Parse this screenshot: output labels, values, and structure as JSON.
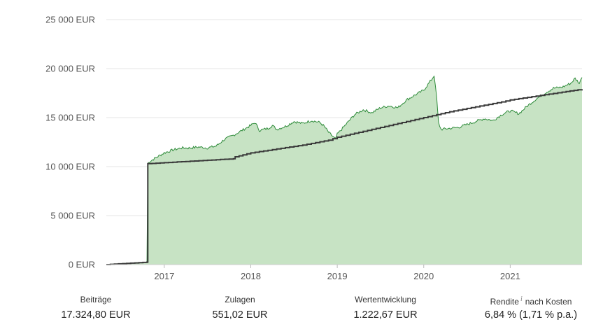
{
  "chart_data": {
    "type": "area",
    "ylim": [
      0,
      25000
    ],
    "y_ticks": [
      0,
      5000,
      10000,
      15000,
      20000,
      25000
    ],
    "y_tick_labels": [
      "0 EUR",
      "5 000 EUR",
      "10 000 EUR",
      "15 000 EUR",
      "20 000 EUR",
      "25 000 EUR"
    ],
    "x_range": [
      2016.33,
      2021.83
    ],
    "x_ticks": [
      2017,
      2018,
      2019,
      2020,
      2021
    ],
    "x_tick_labels": [
      "2017",
      "2018",
      "2019",
      "2020",
      "2021"
    ],
    "grid": "horizontal",
    "colors": {
      "area_fill": "#c7e3c4",
      "area_line": "#2e8b3a",
      "contrib_line": "#3a3a3a",
      "grid": "#e6e6e6"
    },
    "series": [
      {
        "role": "depot value (green area)",
        "x": [
          2016.33,
          2016.5,
          2016.78,
          2016.8,
          2016.81,
          2016.83,
          2016.9,
          2017.0,
          2017.1,
          2017.2,
          2017.3,
          2017.4,
          2017.5,
          2017.6,
          2017.7,
          2017.8,
          2017.9,
          2018.0,
          2018.05,
          2018.1,
          2018.2,
          2018.25,
          2018.3,
          2018.4,
          2018.5,
          2018.6,
          2018.7,
          2018.8,
          2018.85,
          2018.9,
          2018.98,
          2019.0,
          2019.1,
          2019.2,
          2019.3,
          2019.4,
          2019.5,
          2019.6,
          2019.7,
          2019.8,
          2019.9,
          2020.0,
          2020.1,
          2020.12,
          2020.15,
          2020.17,
          2020.2,
          2020.3,
          2020.4,
          2020.5,
          2020.6,
          2020.7,
          2020.8,
          2020.9,
          2021.0,
          2021.1,
          2021.2,
          2021.3,
          2021.4,
          2021.5,
          2021.6,
          2021.7,
          2021.75,
          2021.8,
          2021.83
        ],
        "values": [
          0,
          100,
          250,
          250,
          10300,
          10500,
          10900,
          11400,
          11700,
          11900,
          11900,
          12000,
          11900,
          12100,
          12800,
          13200,
          13700,
          14200,
          14500,
          13700,
          13900,
          14200,
          13800,
          14100,
          14600,
          14400,
          14700,
          14500,
          14100,
          13500,
          12800,
          13300,
          14300,
          15300,
          15800,
          15500,
          16000,
          16200,
          16000,
          16800,
          17300,
          17800,
          19000,
          19300,
          17000,
          14500,
          13800,
          13900,
          14000,
          14300,
          14600,
          14900,
          14700,
          15300,
          15700,
          15400,
          16200,
          16900,
          17500,
          18000,
          18100,
          18500,
          19000,
          18500,
          19100
        ]
      },
      {
        "role": "contributions (dark step line)",
        "x": [
          2016.33,
          2016.8,
          2016.81,
          2017.0,
          2017.4,
          2017.8,
          2017.82,
          2018.0,
          2018.3,
          2018.6,
          2018.9,
          2019.0,
          2019.3,
          2019.6,
          2019.9,
          2020.0,
          2020.3,
          2020.6,
          2020.9,
          2021.0,
          2021.3,
          2021.6,
          2021.83
        ],
        "values": [
          0,
          250,
          10300,
          10400,
          10600,
          10800,
          11000,
          11400,
          11800,
          12200,
          12700,
          13000,
          13600,
          14200,
          14800,
          15000,
          15600,
          16100,
          16600,
          16800,
          17200,
          17600,
          17900
        ]
      }
    ]
  },
  "summary": [
    {
      "label": "Beiträge",
      "value": "17.324,80 EUR"
    },
    {
      "label": "Zulagen",
      "value": "551,02 EUR"
    },
    {
      "label": "Wertentwicklung",
      "value": "1.222,67 EUR"
    },
    {
      "label": "Rendite",
      "info": "i",
      "label_suffix": "nach Kosten",
      "value": "6,84 % (1,71 % p.a.)"
    }
  ]
}
